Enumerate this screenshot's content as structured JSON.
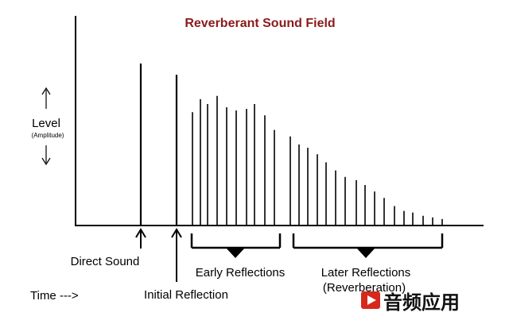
{
  "chart_data": {
    "type": "bar",
    "title": "Reverberant Sound Field",
    "ylabel": "Level",
    "ylabel_sub": "(Amplitude)",
    "xlabel": "Time --->",
    "ylim": [
      0,
      100
    ],
    "x": [
      177,
      222,
      242,
      252,
      261,
      273,
      285,
      297,
      310,
      320,
      333,
      345,
      365,
      376,
      387,
      399,
      410,
      422,
      434,
      448,
      459,
      471,
      483,
      496,
      508,
      519,
      532,
      544,
      556
    ],
    "values": [
      100,
      93,
      70,
      78,
      75,
      80,
      73,
      71,
      72,
      75,
      68,
      59,
      55,
      50,
      48,
      44,
      39,
      34,
      30,
      28,
      25,
      21,
      17,
      12,
      9,
      8,
      6,
      5,
      4
    ],
    "annotations": {
      "direct_sound": "Direct Sound",
      "initial_reflection": "Initial Reflection",
      "early_reflections": "Early Reflections",
      "later_reflections_line1": "Later Reflections",
      "later_reflections_line2": "(Reverberation)"
    },
    "colors": {
      "title": "#8b1a1a",
      "ink": "#000000"
    }
  },
  "watermark": {
    "text": "音频应用",
    "icon": "play-icon",
    "color": "#d6281c"
  }
}
